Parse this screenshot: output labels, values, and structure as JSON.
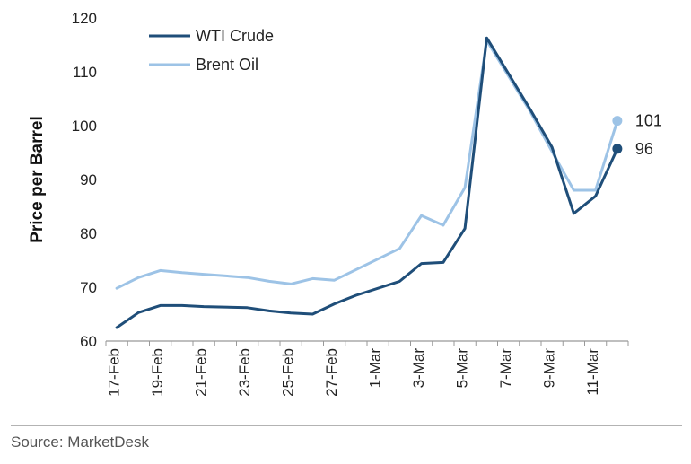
{
  "chart_data": {
    "type": "line",
    "title": "",
    "xlabel": "",
    "ylabel": "Price per Barrel",
    "ylim": [
      60,
      120
    ],
    "yticks": [
      60,
      70,
      80,
      90,
      100,
      110,
      120
    ],
    "grid": false,
    "legend_position": "top-left",
    "x": [
      "17-Feb",
      "18-Feb",
      "19-Feb",
      "20-Feb",
      "21-Feb",
      "22-Feb",
      "23-Feb",
      "24-Feb",
      "25-Feb",
      "26-Feb",
      "27-Feb",
      "28-Feb",
      "1-Mar",
      "2-Mar",
      "3-Mar",
      "4-Mar",
      "5-Mar",
      "6-Mar",
      "7-Mar",
      "8-Mar",
      "9-Mar",
      "10-Mar",
      "11-Mar",
      "12-Mar"
    ],
    "xticks": [
      "17-Feb",
      "19-Feb",
      "21-Feb",
      "23-Feb",
      "25-Feb",
      "27-Feb",
      "1-Mar",
      "3-Mar",
      "5-Mar",
      "7-Mar",
      "9-Mar",
      "11-Mar"
    ],
    "series": [
      {
        "name": "WTI Crude",
        "color": "#1f4e79",
        "points": [
          {
            "x": "17-Feb",
            "y": 62.5
          },
          {
            "x": "18-Feb",
            "y": 65.3
          },
          {
            "x": "19-Feb",
            "y": 66.6
          },
          {
            "x": "20-Feb",
            "y": 66.6
          },
          {
            "x": "21-Feb",
            "y": 66.4
          },
          {
            "x": "23-Feb",
            "y": 66.2
          },
          {
            "x": "24-Feb",
            "y": 65.6
          },
          {
            "x": "25-Feb",
            "y": 65.2
          },
          {
            "x": "26-Feb",
            "y": 65.0
          },
          {
            "x": "27-Feb",
            "y": 66.9
          },
          {
            "x": "28-Feb",
            "y": 68.5
          },
          {
            "x": "2-Mar",
            "y": 71.1
          },
          {
            "x": "3-Mar",
            "y": 74.4
          },
          {
            "x": "4-Mar",
            "y": 74.6
          },
          {
            "x": "5-Mar",
            "y": 80.9
          },
          {
            "x": "6-Mar",
            "y": 116.3
          },
          {
            "x": "8-Mar",
            "y": 103.0
          },
          {
            "x": "9-Mar",
            "y": 96.0
          },
          {
            "x": "10-Mar",
            "y": 83.7
          },
          {
            "x": "11-Mar",
            "y": 86.9
          },
          {
            "x": "12-Mar",
            "y": 95.7
          }
        ]
      },
      {
        "name": "Brent Oil",
        "color": "#9dc3e6",
        "points": [
          {
            "x": "17-Feb",
            "y": 69.8
          },
          {
            "x": "18-Feb",
            "y": 71.8
          },
          {
            "x": "19-Feb",
            "y": 73.1
          },
          {
            "x": "20-Feb",
            "y": 72.7
          },
          {
            "x": "21-Feb",
            "y": 72.4
          },
          {
            "x": "23-Feb",
            "y": 71.8
          },
          {
            "x": "24-Feb",
            "y": 71.1
          },
          {
            "x": "25-Feb",
            "y": 70.6
          },
          {
            "x": "26-Feb",
            "y": 71.6
          },
          {
            "x": "27-Feb",
            "y": 71.3
          },
          {
            "x": "2-Mar",
            "y": 77.2
          },
          {
            "x": "3-Mar",
            "y": 83.3
          },
          {
            "x": "4-Mar",
            "y": 81.5
          },
          {
            "x": "5-Mar",
            "y": 88.5
          },
          {
            "x": "6-Mar",
            "y": 115.8
          },
          {
            "x": "8-Mar",
            "y": 102.6
          },
          {
            "x": "9-Mar",
            "y": 95.2
          },
          {
            "x": "10-Mar",
            "y": 88.0
          },
          {
            "x": "11-Mar",
            "y": 88.0
          },
          {
            "x": "12-Mar",
            "y": 100.9
          }
        ]
      }
    ],
    "end_labels": [
      {
        "series": "Brent Oil",
        "text": "101"
      },
      {
        "series": "WTI Crude",
        "text": "96"
      }
    ]
  },
  "source": "Source: MarketDesk"
}
